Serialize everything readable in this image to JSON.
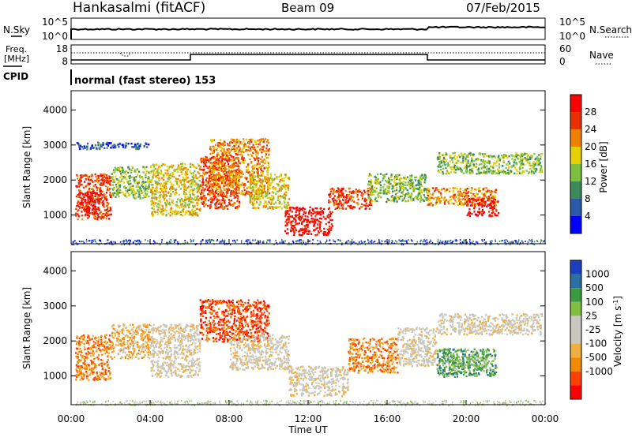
{
  "header": {
    "station": "Hankasalmi (fitACF)",
    "beam": "Beam 09",
    "date": "07/Feb/2015"
  },
  "noise_panel": {
    "left_label": "N.Sky",
    "right_label": "N.Search",
    "tick_top": "10^5",
    "tick_bottom": "10^0",
    "right_tick_top": "10^5",
    "right_tick_bottom": "10^0"
  },
  "freq_panel": {
    "left_label_1": "Freq.",
    "left_label_2": "[MHz]",
    "tick_top": "18",
    "tick_bottom": "8",
    "right_label": "Nave",
    "right_tick_top": "60",
    "right_tick_bottom": "0"
  },
  "cpid_panel": {
    "label": "CPID",
    "text": "normal (fast stereo) 153"
  },
  "colors": {
    "power": [
      "#0000ff",
      "#2a5aa8",
      "#3a8a5a",
      "#7cc040",
      "#e8d000",
      "#f08000",
      "#e83000",
      "#ff0000"
    ],
    "velocity": [
      "#ff0000",
      "#ff4000",
      "#f08a00",
      "#f0b040",
      "#c8c8c0",
      "#c8c8c0",
      "#80c040",
      "#3a9a40",
      "#2a70a0",
      "#1a40c0"
    ]
  },
  "chart_data": [
    {
      "type": "heatmap",
      "name": "power-panel",
      "ylabel": "Slant Range [km]",
      "ylim": [
        180,
        4550
      ],
      "yticks": [
        "1000",
        "2000",
        "3000",
        "4000"
      ],
      "xlim_hours": [
        0,
        24
      ],
      "colorbar": {
        "label": "Power [dB]",
        "ticks": [
          "4",
          "8",
          "12",
          "16",
          "20",
          "24",
          "28"
        ]
      },
      "regions": [
        {
          "t0": 0.2,
          "t1": 2.0,
          "r0": 900,
          "r1": 2200,
          "level": 6
        },
        {
          "t0": 0.4,
          "t1": 1.4,
          "r0": 1050,
          "r1": 1700,
          "level": 7
        },
        {
          "t0": 2.0,
          "t1": 4.0,
          "r0": 1500,
          "r1": 2400,
          "level": 3
        },
        {
          "t0": 4.0,
          "t1": 6.5,
          "r0": 1000,
          "r1": 2500,
          "level": 4
        },
        {
          "t0": 6.5,
          "t1": 8.5,
          "r0": 1200,
          "r1": 2700,
          "level": 6
        },
        {
          "t0": 7.0,
          "t1": 10.0,
          "r0": 1600,
          "r1": 3200,
          "level": 5
        },
        {
          "t0": 9.0,
          "t1": 11.0,
          "r0": 1200,
          "r1": 2200,
          "level": 4
        },
        {
          "t0": 10.8,
          "t1": 13.2,
          "r0": 450,
          "r1": 1250,
          "level": 7
        },
        {
          "t0": 13.0,
          "t1": 15.2,
          "r0": 1200,
          "r1": 1800,
          "level": 6
        },
        {
          "t0": 15.0,
          "t1": 18.0,
          "r0": 1400,
          "r1": 2200,
          "level": 3
        },
        {
          "t0": 18.0,
          "t1": 21.5,
          "r0": 1300,
          "r1": 1800,
          "level": 5
        },
        {
          "t0": 20.0,
          "t1": 21.6,
          "r0": 1000,
          "r1": 1500,
          "level": 7
        },
        {
          "t0": 18.5,
          "t1": 23.8,
          "r0": 2200,
          "r1": 2800,
          "level": 3
        },
        {
          "t0": 0.2,
          "t1": 4.0,
          "r0": 2900,
          "r1": 3100,
          "level": 1
        }
      ]
    },
    {
      "type": "heatmap",
      "name": "velocity-panel",
      "ylabel": "Slant Range [km]",
      "ylim": [
        180,
        4550
      ],
      "yticks": [
        "1000",
        "2000",
        "3000",
        "4000"
      ],
      "xlim_hours": [
        0,
        24
      ],
      "xticks": [
        "00:00",
        "04:00",
        "08:00",
        "12:00",
        "16:00",
        "20:00",
        "00:00"
      ],
      "xlabel": "Time UT",
      "colorbar": {
        "label": "Velocity [m s^-1]",
        "ticks": [
          "1000",
          "500",
          "100",
          "25",
          "-25",
          "-100",
          "-500",
          "-1000"
        ]
      },
      "regions": [
        {
          "t0": 0.2,
          "t1": 2.0,
          "r0": 900,
          "r1": 2200,
          "level": 2
        },
        {
          "t0": 2.0,
          "t1": 4.0,
          "r0": 1500,
          "r1": 2500,
          "level": 3
        },
        {
          "t0": 4.0,
          "t1": 6.5,
          "r0": 1000,
          "r1": 2500,
          "level": 4
        },
        {
          "t0": 6.5,
          "t1": 10.0,
          "r0": 2000,
          "r1": 3200,
          "level": 1
        },
        {
          "t0": 8.0,
          "t1": 11.0,
          "r0": 1200,
          "r1": 2200,
          "level": 4
        },
        {
          "t0": 11.0,
          "t1": 14.0,
          "r0": 450,
          "r1": 1300,
          "level": 4
        },
        {
          "t0": 14.0,
          "t1": 16.5,
          "r0": 1100,
          "r1": 2100,
          "level": 2
        },
        {
          "t0": 16.5,
          "t1": 18.5,
          "r0": 1300,
          "r1": 2400,
          "level": 4
        },
        {
          "t0": 18.5,
          "t1": 21.5,
          "r0": 1000,
          "r1": 1800,
          "level": 7
        },
        {
          "t0": 19.0,
          "t1": 21.0,
          "r0": 1200,
          "r1": 1600,
          "level": 6
        },
        {
          "t0": 18.5,
          "t1": 23.8,
          "r0": 2200,
          "r1": 2800,
          "level": 4
        }
      ]
    }
  ]
}
